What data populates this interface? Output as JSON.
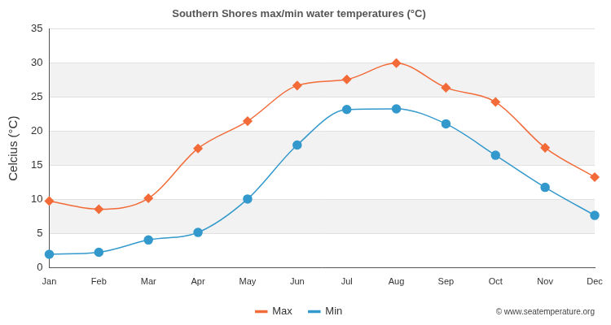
{
  "chart_data": {
    "type": "line",
    "title": "Southern Shores max/min water temperatures (°C)",
    "y_label": "Celcius (°C)",
    "source": "© www.seatemperature.org",
    "categories": [
      "Jan",
      "Feb",
      "Mar",
      "Apr",
      "May",
      "Jun",
      "Jul",
      "Aug",
      "Sep",
      "Oct",
      "Nov",
      "Dec"
    ],
    "series": [
      {
        "name": "Max",
        "color": "#f26b38",
        "marker": "diamond",
        "line_style": "solid",
        "values": [
          9.8,
          8.6,
          10.2,
          17.5,
          21.5,
          26.7,
          27.6,
          30.0,
          26.4,
          24.3,
          17.6,
          13.3
        ]
      },
      {
        "name": "Min",
        "color": "#3399cc",
        "marker": "circle",
        "line_style": "solid",
        "values": [
          2.0,
          2.3,
          4.1,
          5.2,
          10.1,
          18.0,
          23.2,
          23.3,
          21.1,
          16.5,
          11.8,
          7.7
        ]
      }
    ],
    "ylim": [
      0,
      35
    ],
    "yticks": [
      0,
      5,
      10,
      15,
      20,
      25,
      30,
      35
    ],
    "grid": true,
    "legend": "bottom"
  }
}
